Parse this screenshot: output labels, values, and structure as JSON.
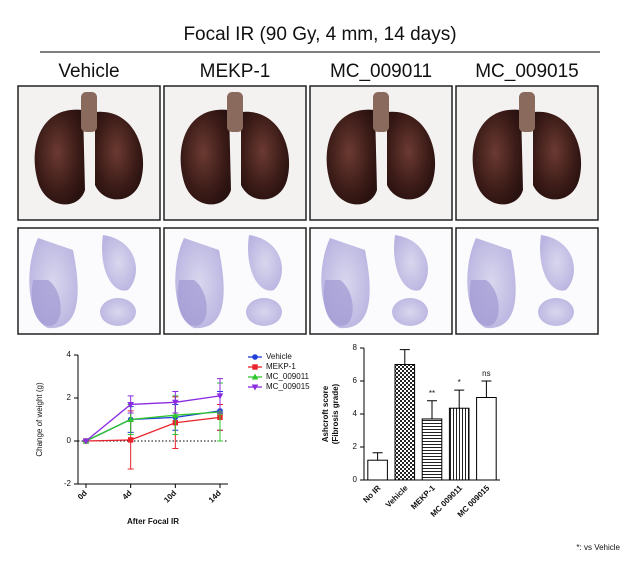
{
  "title": "Focal IR (90 Gy, 4 mm, 14 days)",
  "columns": [
    "Vehicle",
    "MEKP-1",
    "MC_009011",
    "MC_009015"
  ],
  "chart_data": [
    {
      "type": "line",
      "categories": [
        "0d",
        "4d",
        "10d",
        "14d"
      ],
      "ylabel": "Change of weight (g)",
      "xlabel": "After Focal IR",
      "ylim": [
        -2,
        4
      ],
      "yticks": [
        -2,
        0,
        2,
        4
      ],
      "series": [
        {
          "name": "Vehicle",
          "color": "#1f3fd8",
          "marker": "circle",
          "values": [
            0,
            1.0,
            1.1,
            1.4
          ],
          "errors": [
            0,
            0.6,
            0.6,
            0.9
          ]
        },
        {
          "name": "MEKP-1",
          "color": "#e8222a",
          "marker": "square",
          "values": [
            0,
            0.05,
            0.85,
            1.1
          ],
          "errors": [
            0,
            1.35,
            1.2,
            0.6
          ]
        },
        {
          "name": "MC_009011",
          "color": "#2fc52f",
          "marker": "triangle-up",
          "values": [
            0,
            1.0,
            1.2,
            1.35
          ],
          "errors": [
            0,
            0.7,
            0.9,
            1.35
          ]
        },
        {
          "name": "MC_009015",
          "color": "#8a2be2",
          "marker": "triangle-down",
          "values": [
            0,
            1.7,
            1.8,
            2.1
          ],
          "errors": [
            0,
            0.4,
            0.5,
            0.8
          ]
        }
      ]
    },
    {
      "type": "bar",
      "categories": [
        "No IR",
        "Vehicle",
        "MEKP-1",
        "MC 009011",
        "MC 009015"
      ],
      "ylabel": [
        "Ashcroft score",
        "(Fibrosis grade)"
      ],
      "values": [
        1.2,
        7.0,
        3.7,
        4.35,
        5.0
      ],
      "errors": [
        0.45,
        0.9,
        1.1,
        1.1,
        1.0
      ],
      "annotations": [
        null,
        null,
        "**",
        "*",
        "ns"
      ],
      "fills": [
        "white",
        "checker",
        "hlines",
        "vlines",
        "white"
      ],
      "ylim": [
        0,
        8
      ],
      "yticks": [
        0,
        2,
        4,
        6,
        8
      ]
    }
  ],
  "footnote": "*: vs Vehicle"
}
